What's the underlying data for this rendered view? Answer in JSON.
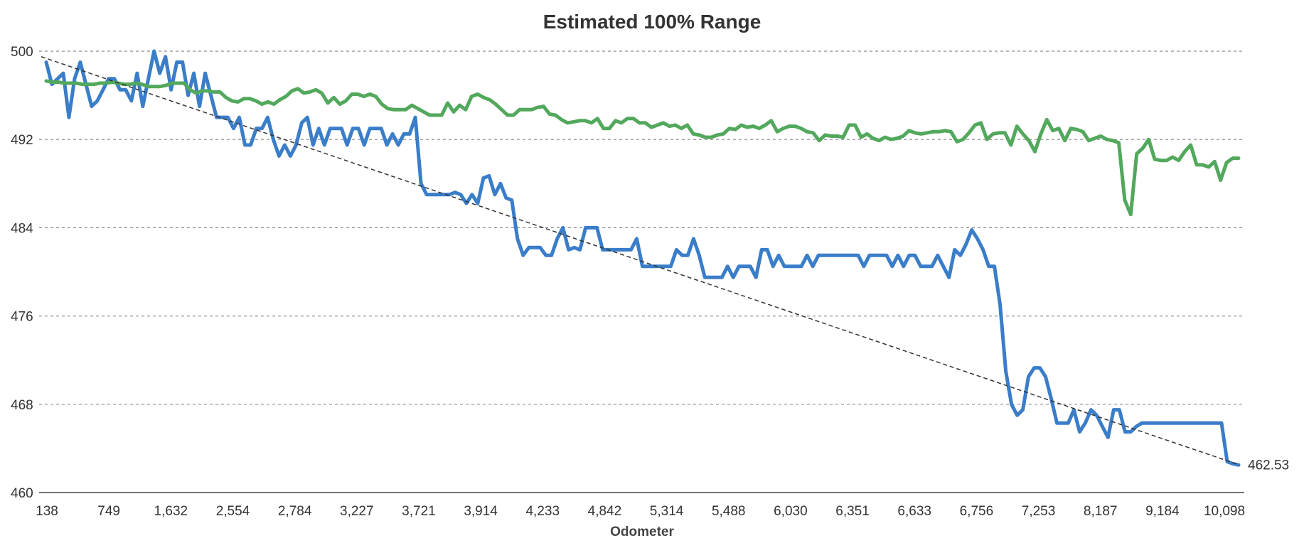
{
  "chart_data": {
    "type": "line",
    "title": "Estimated 100% Range",
    "xlabel": "Odometer",
    "ylabel": "",
    "ylim": [
      460,
      500
    ],
    "yticks": [
      460,
      468,
      476,
      484,
      492,
      500
    ],
    "x_tick_labels": [
      "138",
      "749",
      "1,632",
      "2,554",
      "2,784",
      "3,227",
      "3,721",
      "3,914",
      "4,233",
      "4,842",
      "5,314",
      "5,488",
      "6,030",
      "6,351",
      "6,633",
      "6,756",
      "7,253",
      "8,187",
      "9,184",
      "10,098"
    ],
    "grid": true,
    "legend": "none",
    "series": [
      {
        "color": "#3a7dc9",
        "values": [
          499,
          497,
          497.5,
          498,
          494,
          497.5,
          499,
          497,
          495,
          495.5,
          496.5,
          497.5,
          497.5,
          496.5,
          496.5,
          495.5,
          498,
          495,
          497.5,
          500,
          498,
          499.5,
          496.5,
          499,
          499,
          496,
          498,
          495,
          498,
          496,
          494,
          494,
          494,
          493,
          494,
          491.5,
          491.5,
          493,
          493,
          494,
          492,
          490.5,
          491.5,
          490.5,
          491.5,
          493.5,
          494,
          491.5,
          493,
          491.5,
          493,
          493,
          493,
          491.5,
          493,
          493,
          491.5,
          493,
          493,
          493,
          491.5,
          492.5,
          491.5,
          492.5,
          492.5,
          494,
          488,
          487,
          487,
          487,
          487,
          487,
          487.2,
          487,
          486.2,
          487,
          486.2,
          488.5,
          488.7,
          487,
          488,
          486.7,
          486.5,
          483,
          481.5,
          482.2,
          482.2,
          482.2,
          481.5,
          481.5,
          483,
          484,
          482,
          482.2,
          482,
          484,
          484,
          484,
          482,
          482,
          482,
          482,
          482,
          482,
          483,
          480.5,
          480.5,
          480.5,
          480.5,
          480.5,
          480.5,
          482,
          481.5,
          481.5,
          483,
          481.5,
          479.5,
          479.5,
          479.5,
          479.5,
          480.5,
          479.5,
          480.5,
          480.5,
          480.5,
          479.5,
          482,
          482,
          480.5,
          481.5,
          480.5,
          480.5,
          480.5,
          480.5,
          481.5,
          480.5,
          481.5,
          481.5,
          481.5,
          481.5,
          481.5,
          481.5,
          481.5,
          481.5,
          480.5,
          481.5,
          481.5,
          481.5,
          481.5,
          480.5,
          481.5,
          480.5,
          481.5,
          481.5,
          480.5,
          480.5,
          480.5,
          481.5,
          480.5,
          479.5,
          482,
          481.5,
          482.5,
          483.8,
          483,
          482,
          480.5,
          480.5,
          477,
          471,
          468,
          467,
          467.5,
          470.5,
          471.3,
          471.3,
          470.5,
          468.5,
          466.3,
          466.3,
          466.3,
          467.5,
          465.5,
          466.3,
          467.5,
          467,
          466,
          465,
          467.5,
          467.5,
          465.5,
          465.5,
          466,
          466.3,
          466.3,
          466.3,
          466.3,
          466.3,
          466.3,
          466.3,
          466.3,
          466.3,
          466.3,
          466.3,
          466.3,
          466.3,
          466.3,
          466.3,
          462.8,
          462.6,
          462.5
        ]
      },
      {
        "color": "#52a85c",
        "values": [
          497.3,
          497.2,
          497.2,
          497.1,
          497.1,
          497.1,
          497,
          497,
          497,
          497.1,
          497.1,
          497.2,
          497.1,
          497,
          497,
          497.1,
          497,
          496.8,
          496.8,
          496.8,
          496.9,
          497.1,
          497.1,
          497.1,
          496.5,
          496.2,
          496.4,
          496.4,
          496.3,
          496.3,
          495.8,
          495.5,
          495.4,
          495.7,
          495.7,
          495.5,
          495.2,
          495.4,
          495.2,
          495.6,
          495.9,
          496.4,
          496.6,
          496.2,
          496.3,
          496.5,
          496.2,
          495.3,
          495.8,
          495.2,
          495.5,
          496.1,
          496.1,
          495.9,
          496.1,
          495.9,
          495.2,
          494.8,
          494.7,
          494.7,
          494.7,
          495.1,
          494.8,
          494.5,
          494.2,
          494.2,
          494.2,
          495.3,
          494.5,
          495.1,
          494.7,
          495.9,
          496.1,
          495.8,
          495.6,
          495.2,
          494.7,
          494.2,
          494.2,
          494.7,
          494.7,
          494.7,
          494.9,
          495,
          494.3,
          494.2,
          493.8,
          493.5,
          493.6,
          493.7,
          493.7,
          493.5,
          493.9,
          493,
          493,
          493.7,
          493.5,
          493.9,
          493.9,
          493.5,
          493.5,
          493.1,
          493.3,
          493.5,
          493.2,
          493.3,
          493,
          493.3,
          492.5,
          492.4,
          492.2,
          492.2,
          492.4,
          492.5,
          493,
          492.9,
          493.3,
          493.1,
          493.2,
          493,
          493.3,
          493.7,
          492.7,
          493,
          493.2,
          493.2,
          493,
          492.7,
          492.6,
          491.9,
          492.4,
          492.3,
          492.3,
          492.2,
          493.3,
          493.3,
          492.2,
          492.5,
          492.1,
          491.9,
          492.2,
          492,
          492.1,
          492.3,
          492.8,
          492.6,
          492.5,
          492.6,
          492.7,
          492.7,
          492.8,
          492.7,
          491.8,
          492,
          492.6,
          493.3,
          493.5,
          492,
          492.5,
          492.6,
          492.6,
          491.5,
          493.2,
          492.5,
          491.9,
          490.9,
          492.5,
          493.8,
          492.8,
          493,
          491.9,
          493,
          492.9,
          492.7,
          491.9,
          492.1,
          492.3,
          492,
          491.9,
          491.7,
          486.5,
          485.2,
          490.7,
          491.2,
          492,
          490.2,
          490.1,
          490.1,
          490.4,
          490.1,
          490.9,
          491.5,
          489.7,
          489.7,
          489.5,
          490,
          488.3,
          489.9,
          490.3,
          490.3
        ]
      },
      {
        "type": "trendline",
        "color": "#333333",
        "start": 499.5,
        "end": 462.53,
        "end_label": "462.53"
      }
    ]
  }
}
